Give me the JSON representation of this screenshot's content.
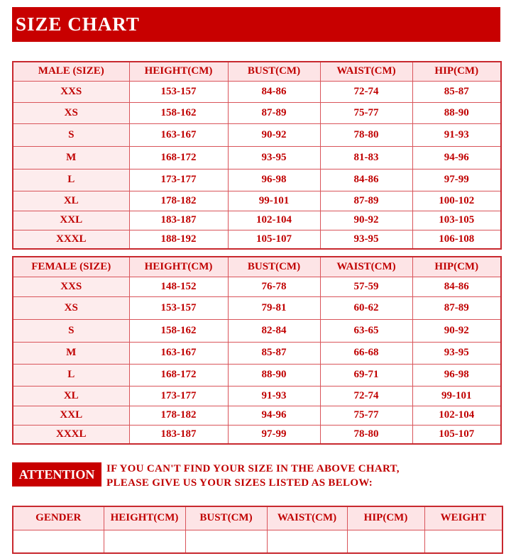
{
  "title": "SIZE CHART",
  "male": {
    "headers": [
      "MALE (SIZE)",
      "HEIGHT(CM)",
      "BUST(CM)",
      "WAIST(CM)",
      "HIP(CM)"
    ],
    "rows": [
      [
        "XXS",
        "153-157",
        "84-86",
        "72-74",
        "85-87"
      ],
      [
        "XS",
        "158-162",
        "87-89",
        "75-77",
        "88-90"
      ],
      [
        "S",
        "163-167",
        "90-92",
        "78-80",
        "91-93"
      ],
      [
        "M",
        "168-172",
        "93-95",
        "81-83",
        "94-96"
      ],
      [
        "L",
        "173-177",
        "96-98",
        "84-86",
        "97-99"
      ],
      [
        "XL",
        "178-182",
        "99-101",
        "87-89",
        "100-102"
      ],
      [
        "XXL",
        "183-187",
        "102-104",
        "90-92",
        "103-105"
      ],
      [
        "XXXL",
        "188-192",
        "105-107",
        "93-95",
        "106-108"
      ]
    ]
  },
  "female": {
    "headers": [
      "FEMALE (SIZE)",
      "HEIGHT(CM)",
      "BUST(CM)",
      "WAIST(CM)",
      "HIP(CM)"
    ],
    "rows": [
      [
        "XXS",
        "148-152",
        "76-78",
        "57-59",
        "84-86"
      ],
      [
        "XS",
        "153-157",
        "79-81",
        "60-62",
        "87-89"
      ],
      [
        "S",
        "158-162",
        "82-84",
        "63-65",
        "90-92"
      ],
      [
        "M",
        "163-167",
        "85-87",
        "66-68",
        "93-95"
      ],
      [
        "L",
        "168-172",
        "88-90",
        "69-71",
        "96-98"
      ],
      [
        "XL",
        "173-177",
        "91-93",
        "72-74",
        "99-101"
      ],
      [
        "XXL",
        "178-182",
        "94-96",
        "75-77",
        "102-104"
      ],
      [
        "XXXL",
        "183-187",
        "97-99",
        "78-80",
        "105-107"
      ]
    ]
  },
  "attention": {
    "label": "ATTENTION",
    "line1": "IF YOU CAN'T FIND YOUR SIZE IN THE ABOVE CHART,",
    "line2": "PLEASE GIVE US YOUR SIZES LISTED AS BELOW:"
  },
  "form": {
    "headers": [
      "GENDER",
      "HEIGHT(CM)",
      "BUST(CM)",
      "WAIST(CM)",
      "HIP(CM)",
      "WEIGHT"
    ]
  },
  "colors": {
    "accent": "#c80000",
    "header_bg": "#fde4e6"
  }
}
